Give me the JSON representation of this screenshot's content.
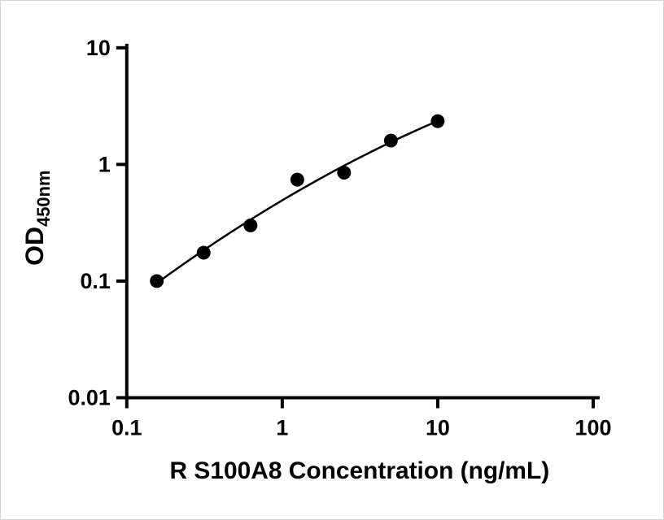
{
  "chart_data": {
    "type": "scatter",
    "title": "",
    "xlabel": "R S100A8 Concentration (ng/mL)",
    "ylabel_main": "OD",
    "ylabel_sub": "450nm",
    "x_scale": "log",
    "y_scale": "log",
    "xlim": [
      0.1,
      100
    ],
    "ylim": [
      0.01,
      10
    ],
    "x_ticks": [
      0.1,
      1,
      10,
      100
    ],
    "x_tick_labels": [
      "0.1",
      "1",
      "10",
      "100"
    ],
    "y_ticks": [
      0.01,
      0.1,
      1,
      10
    ],
    "y_tick_labels": [
      "0.01",
      "0.1",
      "1",
      "10"
    ],
    "grid": false,
    "legend": "none",
    "series": [
      {
        "x": [
          0.156,
          0.3125,
          0.625,
          1.25,
          2.5,
          5,
          10
        ],
        "y": [
          0.1,
          0.175,
          0.3,
          0.74,
          0.85,
          1.6,
          2.35
        ],
        "marker": "circle",
        "marker_color": "#000000",
        "line_color": "#000000",
        "fit": "quadratic-loglog"
      }
    ]
  },
  "figure": {
    "background": "#ffffff",
    "axis_color": "#000000"
  }
}
